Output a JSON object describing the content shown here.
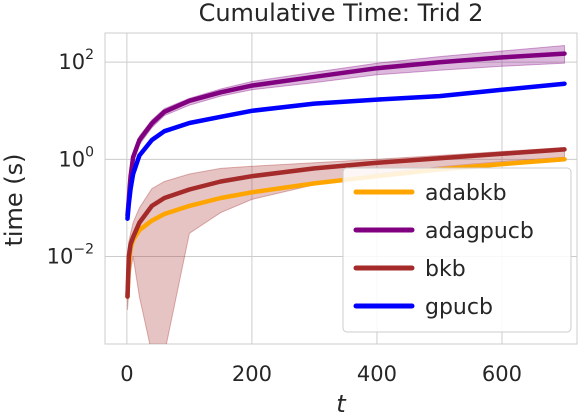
{
  "chart_data": {
    "type": "line",
    "title": "Cumulative Time: Trid 2",
    "xlabel": "t",
    "ylabel": "time (s)",
    "xlim": [
      -35,
      720
    ],
    "ylim_log10": [
      -3.8,
      2.6
    ],
    "y_scale": "log",
    "grid": true,
    "legend_position": "lower-right",
    "xticks": [
      0,
      200,
      400,
      600
    ],
    "xtick_labels": [
      "0",
      "200",
      "400",
      "600"
    ],
    "yticks": [
      0.01,
      1,
      100
    ],
    "ytick_labels": [
      {
        "base": "10",
        "exp": "−2"
      },
      {
        "base": "10",
        "exp": "0"
      },
      {
        "base": "10",
        "exp": "2"
      }
    ],
    "series": [
      {
        "name": "adabkb",
        "color": "#ffa500",
        "x": [
          1,
          3,
          6,
          10,
          20,
          40,
          60,
          100,
          150,
          200,
          300,
          400,
          500,
          600,
          700
        ],
        "y": [
          0.0015,
          0.006,
          0.015,
          0.022,
          0.035,
          0.055,
          0.075,
          0.11,
          0.16,
          0.21,
          0.32,
          0.45,
          0.62,
          0.8,
          1.0
        ]
      },
      {
        "name": "adagpucb",
        "color": "#800080",
        "band": {
          "color": "#800080",
          "lower": [
            0.06,
            0.12,
            0.35,
            0.9,
            2.0,
            4.5,
            8.0,
            13.0,
            20.0,
            27.0,
            38.0,
            55.0,
            68.0,
            82.0,
            95.0
          ],
          "upper": [
            0.09,
            0.2,
            0.55,
            1.3,
            3.0,
            6.5,
            11.0,
            18.0,
            28.0,
            40.0,
            62.0,
            95.0,
            130.0,
            170.0,
            220.0
          ]
        },
        "x": [
          1,
          3,
          6,
          10,
          20,
          40,
          60,
          100,
          150,
          200,
          300,
          400,
          500,
          600,
          700
        ],
        "y": [
          0.07,
          0.15,
          0.45,
          1.1,
          2.5,
          5.5,
          9.5,
          16.0,
          24.0,
          33.0,
          50.0,
          75.0,
          100.0,
          125.0,
          150.0
        ]
      },
      {
        "name": "bkb",
        "color": "#a52a2a",
        "band": {
          "color": "#a52a2a",
          "lower": [
            0.0008,
            0.002,
            0.005,
            0.01,
            0.0015,
            0.0001,
            0.0001,
            0.03,
            0.08,
            0.15,
            0.3,
            0.5,
            0.7,
            0.9,
            1.1
          ],
          "upper": [
            0.003,
            0.02,
            0.03,
            0.05,
            0.1,
            0.25,
            0.35,
            0.5,
            0.65,
            0.72,
            0.85,
            1.0,
            1.2,
            1.45,
            1.75
          ]
        },
        "x": [
          1,
          3,
          6,
          10,
          20,
          40,
          60,
          100,
          150,
          200,
          300,
          400,
          500,
          600,
          700
        ],
        "y": [
          0.0015,
          0.01,
          0.018,
          0.025,
          0.05,
          0.11,
          0.16,
          0.24,
          0.35,
          0.45,
          0.65,
          0.85,
          1.05,
          1.3,
          1.6
        ]
      },
      {
        "name": "gpucb",
        "color": "#0000ff",
        "x": [
          1,
          3,
          6,
          10,
          20,
          40,
          60,
          100,
          150,
          200,
          300,
          400,
          500,
          600,
          700
        ],
        "y": [
          0.06,
          0.12,
          0.25,
          0.5,
          1.2,
          2.5,
          3.8,
          5.6,
          7.5,
          10.0,
          14.0,
          17.0,
          20.0,
          27.0,
          36.0
        ]
      }
    ]
  }
}
